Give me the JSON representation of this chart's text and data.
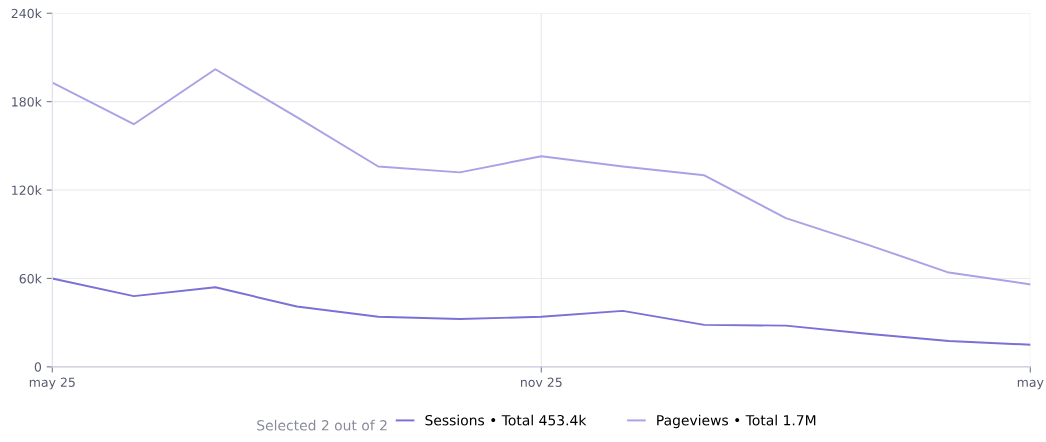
{
  "chart_data": {
    "type": "line",
    "categories": [
      "may 25",
      null,
      null,
      null,
      null,
      null,
      "nov 25",
      null,
      null,
      null,
      null,
      null,
      "may"
    ],
    "series": [
      {
        "name": "Sessions • Total 453.4k",
        "color": "#7a70d6",
        "values": [
          60000,
          48000,
          54000,
          41000,
          34000,
          32500,
          34000,
          38000,
          28500,
          28000,
          22500,
          17600,
          15000
        ]
      },
      {
        "name": "Pageviews • Total 1.7M",
        "color": "#a8a2e6",
        "values": [
          193000,
          164700,
          202000,
          169500,
          136000,
          132000,
          143000,
          136000,
          130000,
          101000,
          83000,
          64000,
          56000
        ]
      }
    ],
    "ylim": [
      0,
      240000
    ],
    "yticks": [
      0,
      {
        "value": 60000,
        "label": "60k"
      },
      {
        "value": 120000,
        "label": "120k"
      },
      {
        "value": 180000,
        "label": "180k"
      },
      {
        "value": 240000,
        "label": "240k"
      }
    ],
    "grid": true,
    "legend": "bottom",
    "marker": "none",
    "line_style": "solid",
    "annotations": [
      "Selected 2 out of 2"
    ]
  }
}
